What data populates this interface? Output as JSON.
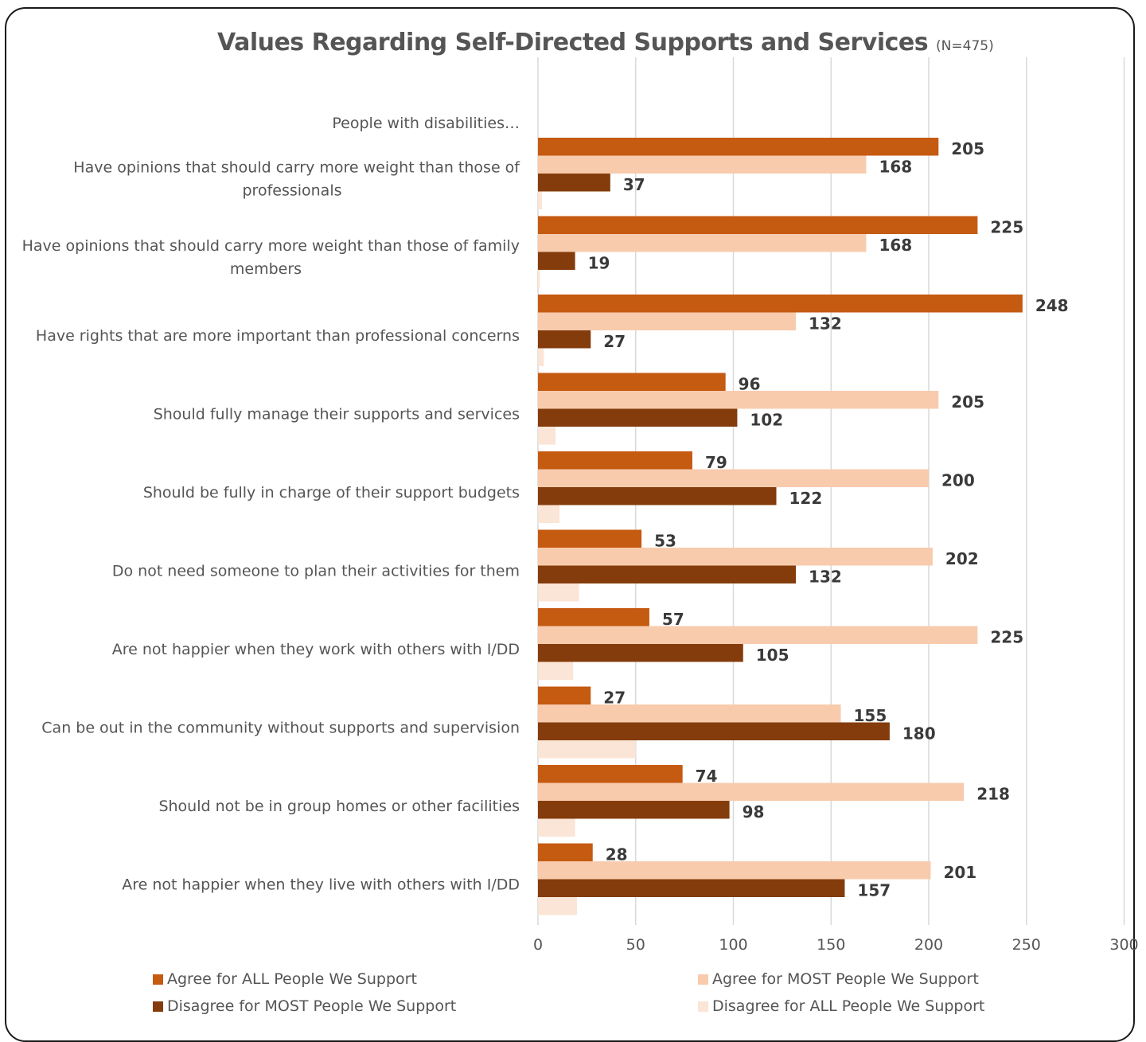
{
  "chart_data": {
    "type": "bar",
    "orientation": "horizontal",
    "title": "Values Regarding Self-Directed Supports and Services",
    "subtitle": "(N=475)",
    "header_label": "People with disabilities…",
    "categories": [
      [
        "Have opinions that should carry more weight than those of",
        "professionals"
      ],
      [
        "Have opinions that should carry more weight than those of family",
        "members"
      ],
      [
        "Have rights that are more important than professional concerns"
      ],
      [
        "Should fully manage their supports and services"
      ],
      [
        "Should be fully in charge of their support budgets"
      ],
      [
        "Do not need someone to plan their activities for them"
      ],
      [
        "Are not happier when they work with others with I/DD"
      ],
      [
        "Can be out in the community without supports and supervision"
      ],
      [
        "Should not be in group homes or other facilities"
      ],
      [
        "Are not happier when they live with others with I/DD"
      ]
    ],
    "series": [
      {
        "name": "Agree for ALL People We Support",
        "color": "#c55a11",
        "values": [
          205,
          225,
          248,
          96,
          79,
          53,
          57,
          27,
          74,
          28
        ],
        "show_labels": true
      },
      {
        "name": "Agree for MOST People We Support",
        "color": "#f8cbad",
        "values": [
          168,
          168,
          132,
          205,
          200,
          202,
          225,
          155,
          218,
          201
        ],
        "show_labels": true
      },
      {
        "name": "Disagree for MOST People We Support",
        "color": "#843c0c",
        "values": [
          37,
          19,
          27,
          102,
          122,
          132,
          105,
          180,
          98,
          157
        ],
        "show_labels": true
      },
      {
        "name": "Disagree for ALL People We Support",
        "color": "#fbe5d6",
        "values": [
          2,
          1,
          3,
          9,
          11,
          21,
          18,
          50,
          19,
          20
        ],
        "show_labels": false
      }
    ],
    "xlim": [
      0,
      300
    ],
    "xticks": [
      "0",
      "50",
      "100",
      "150",
      "200",
      "250",
      "300"
    ],
    "grid": true,
    "legend_position": "bottom"
  }
}
